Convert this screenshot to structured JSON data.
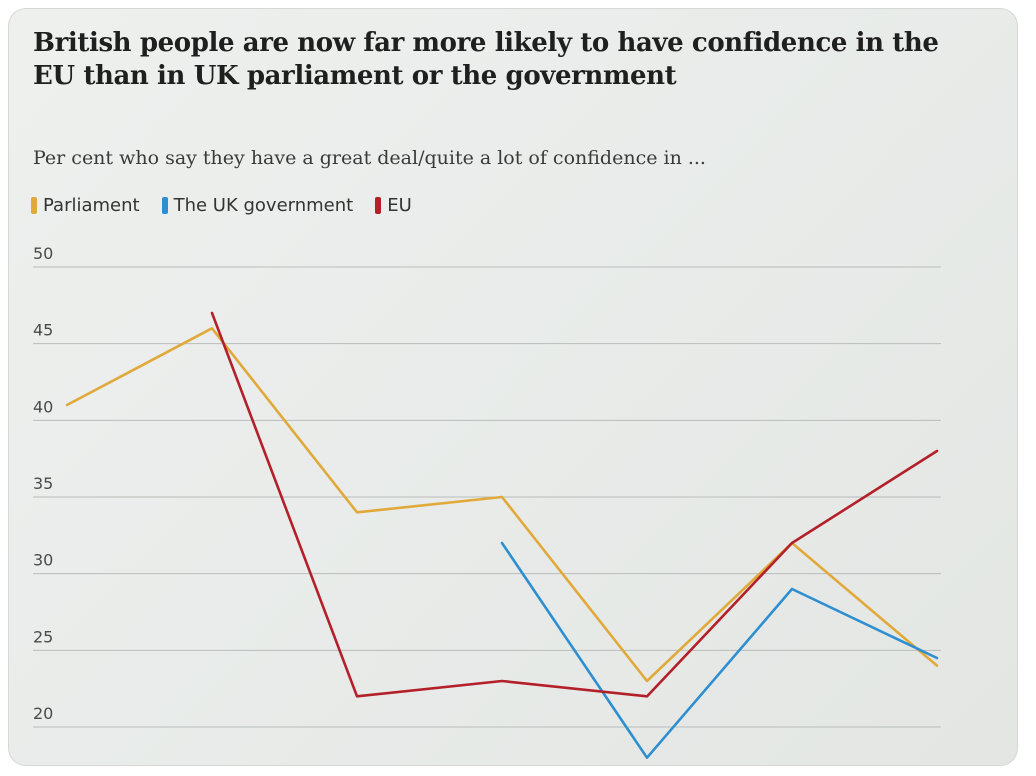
{
  "chart_data": {
    "type": "line",
    "title": "British people are now far more likely to have confidence in the EU than in UK parliament or the government",
    "subtitle": "Per cent who say they have a great deal/quite a lot of confidence in ...",
    "xlabel": "",
    "ylabel": "",
    "ylim": [
      20,
      50
    ],
    "yticks": [
      "50",
      "45",
      "40",
      "35",
      "30",
      "25",
      "20"
    ],
    "grid": true,
    "legend_position": "top-left",
    "x": [
      1,
      2,
      3,
      4,
      5,
      6,
      7
    ],
    "series": [
      {
        "name": "Parliament",
        "color": "#e0a93a",
        "values": [
          41,
          46,
          34,
          35,
          23,
          32,
          24
        ]
      },
      {
        "name": "The UK government",
        "color": "#2e8fd0",
        "values": [
          null,
          null,
          null,
          32,
          18,
          29,
          24.5
        ]
      },
      {
        "name": "EU",
        "color": "#b3202a",
        "values": [
          null,
          47,
          22,
          23,
          22,
          32,
          38
        ]
      }
    ]
  }
}
